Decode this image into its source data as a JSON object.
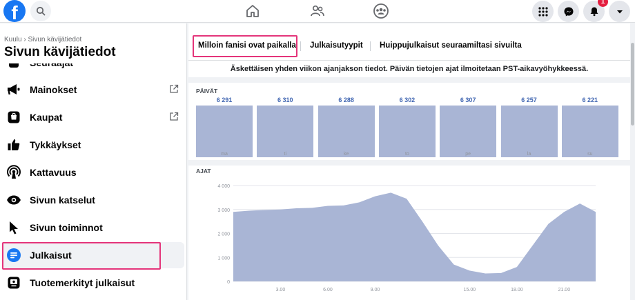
{
  "topbar": {
    "logo": "f",
    "icons": [
      "search-icon",
      "home-icon",
      "friends-icon",
      "groups-icon",
      "menu-grid-icon",
      "messenger-icon",
      "bell-icon",
      "caret-down-icon"
    ],
    "notification_count": "1"
  },
  "sidebar": {
    "breadcrumb": "Kuulu › Sivun kävijätiedot",
    "title": "Sivun kävijätiedot",
    "partial_item": "Seuraajat",
    "items": [
      {
        "label": "Mainokset",
        "icon": "megaphone-icon",
        "external": true
      },
      {
        "label": "Kaupat",
        "icon": "shop-icon",
        "external": true
      },
      {
        "label": "Tykkäykset",
        "icon": "thumbs-up-icon",
        "external": false
      },
      {
        "label": "Kattavuus",
        "icon": "reach-icon",
        "external": false
      },
      {
        "label": "Sivun katselut",
        "icon": "eye-icon",
        "external": false
      },
      {
        "label": "Sivun toiminnot",
        "icon": "cursor-icon",
        "external": false
      },
      {
        "label": "Julkaisut",
        "icon": "posts-icon",
        "external": false,
        "active": true
      },
      {
        "label": "Tuotemerkityt julkaisut",
        "icon": "branded-content-icon",
        "external": false
      }
    ]
  },
  "main": {
    "tabs": [
      "Milloin fanisi ovat paikalla",
      "Julkaisutyypit",
      "Huippujulkaisut seuraamiltasi sivuilta"
    ],
    "active_tab": 0,
    "info": "Äskettäisen yhden viikon ajanjakson tiedot. Päivän tietojen ajat ilmoitetaan PST-aikavyöhykkeessä.",
    "days_label": "PÄIVÄT",
    "hours_label": "AJAT"
  },
  "colors": {
    "accent": "#1877f2",
    "bar": "#a9b5d5",
    "value_text": "#4267b2",
    "highlight": "#e4347a"
  },
  "chart_data": [
    {
      "type": "bar",
      "title": "PÄIVÄT",
      "categories": [
        "ma",
        "ti",
        "ke",
        "to",
        "pe",
        "la",
        "su"
      ],
      "values": [
        6291,
        6310,
        6288,
        6302,
        6307,
        6257,
        6221
      ],
      "value_labels": [
        "6 291",
        "6 310",
        "6 288",
        "6 302",
        "6 307",
        "6 257",
        "6 221"
      ]
    },
    {
      "type": "area",
      "title": "AJAT",
      "x": [
        0,
        1,
        2,
        3,
        4,
        5,
        6,
        7,
        8,
        9,
        10,
        11,
        12,
        13,
        14,
        15,
        16,
        17,
        18,
        19,
        20,
        21,
        22,
        23
      ],
      "values": [
        2900,
        2950,
        2980,
        3000,
        3050,
        3070,
        3150,
        3170,
        3300,
        3550,
        3700,
        3450,
        2500,
        1500,
        700,
        450,
        330,
        350,
        600,
        1500,
        2400,
        2900,
        3250,
        2900
      ],
      "ylim": [
        0,
        4000
      ],
      "yticks": [
        "0",
        "1 000",
        "2 000",
        "3 000",
        "4 000"
      ],
      "xticks": [
        "3.00",
        "6.00",
        "9.00",
        "15.00",
        "18.00",
        "21.00"
      ],
      "grid": true
    }
  ]
}
